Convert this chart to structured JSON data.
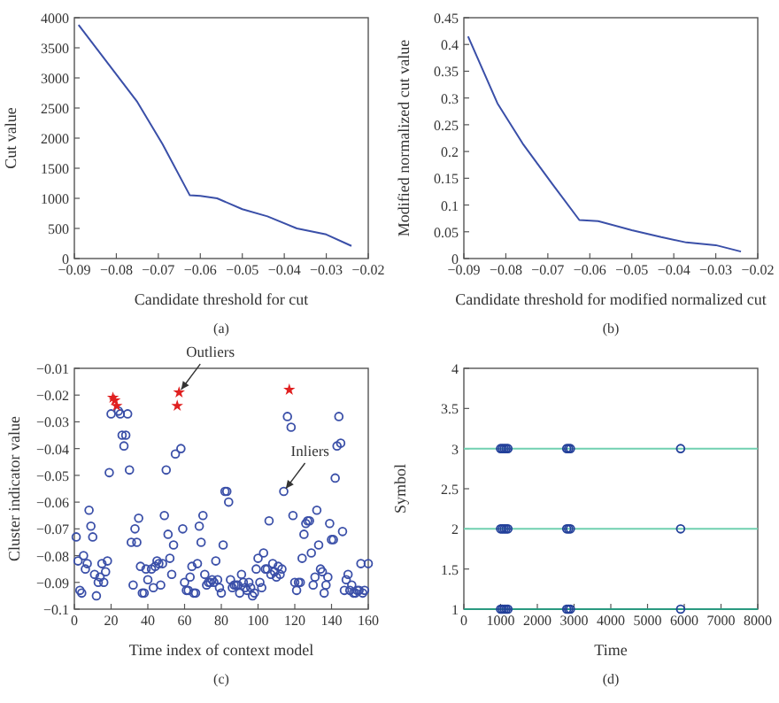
{
  "chart_data": [
    {
      "type": "line",
      "xlabel": "Candidate threshold for cut",
      "ylabel": "Cut value",
      "annotations": [
        "(a)"
      ],
      "xlim": [
        -0.09,
        -0.02
      ],
      "xticks": [
        -0.09,
        -0.08,
        -0.07,
        -0.06,
        -0.05,
        -0.04,
        -0.03,
        -0.02
      ],
      "ylim": [
        0,
        4000
      ],
      "yticks": [
        0,
        500,
        1000,
        1500,
        2000,
        2500,
        3000,
        3500,
        4000
      ],
      "series": [
        {
          "color": "#3a4fa8",
          "x": [
            -0.089,
            -0.075,
            -0.069,
            -0.0625,
            -0.06,
            -0.056,
            -0.05,
            -0.044,
            -0.037,
            -0.03,
            -0.024
          ],
          "values": [
            3880,
            2600,
            1900,
            1050,
            1040,
            1000,
            820,
            700,
            500,
            400,
            210
          ]
        }
      ]
    },
    {
      "type": "line",
      "xlabel": "Candidate threshold for modified normalized cut",
      "ylabel": "Modified normalized cut value",
      "annotations": [
        "(b)"
      ],
      "xlim": [
        -0.09,
        -0.02
      ],
      "xticks": [
        -0.09,
        -0.08,
        -0.07,
        -0.06,
        -0.05,
        -0.04,
        -0.03,
        -0.02
      ],
      "ylim": [
        0,
        0.45
      ],
      "yticks": [
        0,
        0.05,
        0.1,
        0.15,
        0.2,
        0.25,
        0.3,
        0.35,
        0.4,
        0.45
      ],
      "series": [
        {
          "color": "#3a4fa8",
          "x": [
            -0.089,
            -0.082,
            -0.076,
            -0.069,
            -0.0625,
            -0.058,
            -0.05,
            -0.043,
            -0.037,
            -0.03,
            -0.024
          ],
          "values": [
            0.415,
            0.29,
            0.215,
            0.14,
            0.072,
            0.07,
            0.053,
            0.04,
            0.03,
            0.025,
            0.013
          ]
        }
      ]
    },
    {
      "type": "scatter",
      "xlabel": "Time index of context model",
      "ylabel": "Cluster indicator value",
      "annotations": [
        {
          "text": "Outliers",
          "x": 57,
          "y": -0.019
        },
        {
          "text": "Inliers",
          "x": 114,
          "y": -0.056
        },
        "(c)"
      ],
      "xlim": [
        0,
        160
      ],
      "xticks": [
        0,
        20,
        40,
        60,
        80,
        100,
        120,
        140,
        160
      ],
      "ylim": [
        -0.1,
        -0.01
      ],
      "yticks": [
        -0.1,
        -0.09,
        -0.08,
        -0.07,
        -0.06,
        -0.05,
        -0.04,
        -0.03,
        -0.02,
        -0.01
      ],
      "marker": "circle",
      "series": [
        {
          "color": "#3a4fa8",
          "x": [
            1,
            2,
            3,
            4,
            5,
            6,
            7,
            8,
            9,
            10,
            11,
            12,
            13,
            14,
            15,
            16,
            17,
            18,
            19,
            20,
            24,
            25,
            26,
            27,
            28,
            29,
            30,
            31,
            32,
            33,
            34,
            35,
            36,
            37,
            38,
            39,
            40,
            42,
            43,
            44,
            45,
            46,
            47,
            48,
            49,
            50,
            51,
            52,
            53,
            54,
            55,
            58,
            59,
            60,
            61,
            62,
            63,
            64,
            65,
            66,
            67,
            68,
            69,
            70,
            71,
            72,
            73,
            74,
            75,
            76,
            77,
            78,
            79,
            80,
            81,
            82,
            83,
            84,
            85,
            86,
            87,
            88,
            89,
            90,
            91,
            92,
            93,
            94,
            95,
            96,
            97,
            98,
            99,
            100,
            101,
            102,
            103,
            104,
            105,
            106,
            107,
            108,
            109,
            110,
            111,
            112,
            113,
            114,
            116,
            118,
            119,
            120,
            121,
            122,
            123,
            124,
            125,
            126,
            127,
            128,
            129,
            130,
            131,
            132,
            133,
            134,
            135,
            136,
            137,
            138,
            139,
            140,
            141,
            142,
            143,
            144,
            145,
            146,
            147,
            148,
            149,
            150,
            151,
            152,
            153,
            154,
            155,
            156,
            157,
            158,
            160
          ],
          "values": [
            -0.073,
            -0.082,
            -0.093,
            -0.094,
            -0.08,
            -0.085,
            -0.083,
            -0.063,
            -0.069,
            -0.073,
            -0.087,
            -0.095,
            -0.09,
            -0.088,
            -0.083,
            -0.09,
            -0.086,
            -0.082,
            -0.049,
            -0.027,
            -0.026,
            -0.027,
            -0.035,
            -0.039,
            -0.035,
            -0.027,
            -0.048,
            -0.075,
            -0.091,
            -0.07,
            -0.075,
            -0.066,
            -0.084,
            -0.094,
            -0.094,
            -0.085,
            -0.089,
            -0.085,
            -0.092,
            -0.084,
            -0.082,
            -0.083,
            -0.091,
            -0.083,
            -0.065,
            -0.048,
            -0.072,
            -0.081,
            -0.087,
            -0.076,
            -0.042,
            -0.04,
            -0.07,
            -0.09,
            -0.093,
            -0.093,
            -0.088,
            -0.084,
            -0.094,
            -0.094,
            -0.083,
            -0.069,
            -0.075,
            -0.065,
            -0.087,
            -0.091,
            -0.09,
            -0.09,
            -0.089,
            -0.09,
            -0.082,
            -0.089,
            -0.092,
            -0.094,
            -0.076,
            -0.056,
            -0.056,
            -0.06,
            -0.089,
            -0.092,
            -0.091,
            -0.091,
            -0.091,
            -0.094,
            -0.087,
            -0.09,
            -0.092,
            -0.093,
            -0.09,
            -0.092,
            -0.095,
            -0.094,
            -0.085,
            -0.081,
            -0.09,
            -0.092,
            -0.079,
            -0.085,
            -0.085,
            -0.067,
            -0.087,
            -0.083,
            -0.086,
            -0.088,
            -0.084,
            -0.087,
            -0.085,
            -0.056,
            -0.028,
            -0.032,
            -0.065,
            -0.09,
            -0.093,
            -0.09,
            -0.09,
            -0.081,
            -0.072,
            -0.068,
            -0.067,
            -0.067,
            -0.079,
            -0.091,
            -0.088,
            -0.063,
            -0.076,
            -0.085,
            -0.086,
            -0.094,
            -0.091,
            -0.088,
            -0.068,
            -0.074,
            -0.074,
            -0.051,
            -0.039,
            -0.028,
            -0.038,
            -0.071,
            -0.093,
            -0.089,
            -0.087,
            -0.093,
            -0.091,
            -0.094,
            -0.094,
            -0.093,
            -0.093,
            -0.083,
            -0.094,
            -0.093,
            -0.083
          ]
        },
        {
          "color": "#e02020",
          "marker": "star",
          "x": [
            21,
            22,
            23,
            56,
            57,
            117
          ],
          "values": [
            -0.021,
            -0.022,
            -0.024,
            -0.024,
            -0.019,
            -0.018
          ]
        }
      ]
    },
    {
      "type": "scatter",
      "xlabel": "Time",
      "ylabel": "Symbol",
      "annotations": [
        "(d)"
      ],
      "xlim": [
        0,
        8000
      ],
      "xticks": [
        0,
        1000,
        2000,
        3000,
        4000,
        5000,
        6000,
        7000,
        8000
      ],
      "ylim": [
        1,
        4
      ],
      "yticks": [
        1,
        1.5,
        2,
        2.5,
        3,
        3.5,
        4
      ],
      "marker": "circle",
      "series": [
        {
          "type": "line",
          "marker": "none",
          "color": "#70d0b0",
          "x": [
            0,
            8000
          ],
          "values": [
            3,
            3
          ]
        },
        {
          "type": "line",
          "marker": "none",
          "color": "#70d0b0",
          "x": [
            0,
            8000
          ],
          "values": [
            2,
            2
          ]
        },
        {
          "type": "line",
          "marker": "none",
          "color": "#2a9a80",
          "x": [
            0,
            8000
          ],
          "values": [
            1,
            1
          ]
        },
        {
          "color": "#23409a",
          "x": [
            1000,
            1050,
            1100,
            1150,
            1200,
            2800,
            2850,
            2900,
            5900
          ],
          "values": [
            3,
            3,
            3,
            3,
            3,
            3,
            3,
            3,
            3
          ]
        },
        {
          "color": "#23409a",
          "x": [
            1000,
            1050,
            1100,
            1150,
            1200,
            2800,
            2850,
            2900,
            5900
          ],
          "values": [
            2,
            2,
            2,
            2,
            2,
            2,
            2,
            2,
            2
          ]
        },
        {
          "color": "#23409a",
          "x": [
            1000,
            1050,
            1100,
            1150,
            1200,
            2800,
            2850,
            2900,
            5900
          ],
          "values": [
            1,
            1,
            1,
            1,
            1,
            1,
            1,
            1,
            1
          ]
        }
      ]
    }
  ]
}
